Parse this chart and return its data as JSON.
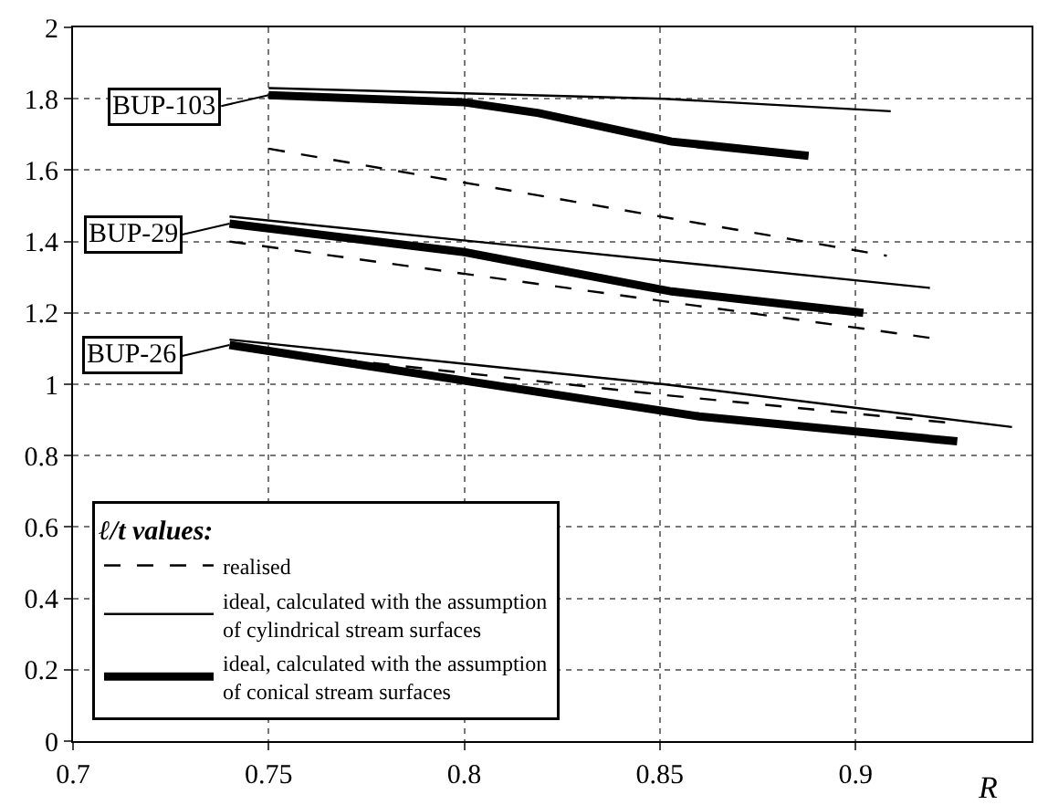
{
  "chart_data": {
    "type": "line",
    "xlabel": "R",
    "legend_title": "ℓ/t values:",
    "legend": "bottom left",
    "grid": true,
    "xlim": [
      0.7,
      0.945
    ],
    "xticks": [
      0.7,
      0.75,
      0.8,
      0.85,
      0.9
    ],
    "ylim": [
      0,
      2
    ],
    "yticks": [
      0,
      0.2,
      0.4,
      0.6,
      0.8,
      1,
      1.2,
      1.4,
      1.6,
      1.8,
      2
    ],
    "series": [
      {
        "name": "realised",
        "color": "#000000",
        "line_style": "dashed",
        "x": [
          0.75,
          0.908
        ],
        "values": [
          1.66,
          1.36
        ]
      },
      {
        "name": "ideal, calculated with the assumption\nof cylindrical stream surfaces",
        "color": "#000000",
        "line_style": "solid",
        "x": [
          0.75,
          0.851,
          0.909
        ],
        "values": [
          1.83,
          1.8,
          1.765
        ]
      },
      {
        "name": "ideal, calculated with the assumption\nof conical stream surfaces",
        "color": "#000000",
        "line_style": "solid",
        "x": [
          0.75,
          0.8,
          0.819,
          0.853,
          0.888
        ],
        "values": [
          1.81,
          1.79,
          1.76,
          1.68,
          1.64
        ]
      },
      {
        "color": "#000000",
        "line_style": "dashed",
        "x": [
          0.74,
          0.919
        ],
        "values": [
          1.4,
          1.13
        ]
      },
      {
        "color": "#000000",
        "line_style": "solid",
        "x": [
          0.74,
          0.919
        ],
        "values": [
          1.47,
          1.27
        ]
      },
      {
        "color": "#000000",
        "line_style": "solid",
        "x": [
          0.74,
          0.8,
          0.853,
          0.902
        ],
        "values": [
          1.45,
          1.37,
          1.26,
          1.2
        ]
      },
      {
        "color": "#000000",
        "line_style": "dashed",
        "x": [
          0.76,
          0.851,
          0.926
        ],
        "values": [
          1.08,
          0.97,
          0.89
        ]
      },
      {
        "color": "#000000",
        "line_style": "solid",
        "x": [
          0.74,
          0.851,
          0.94
        ],
        "values": [
          1.125,
          1.0,
          0.88
        ]
      },
      {
        "color": "#000000",
        "line_style": "solid",
        "x": [
          0.74,
          0.86,
          0.926
        ],
        "values": [
          1.11,
          0.91,
          0.84
        ]
      }
    ],
    "annotations": [
      "BUP-103",
      "BUP-29",
      "BUP-26"
    ]
  }
}
